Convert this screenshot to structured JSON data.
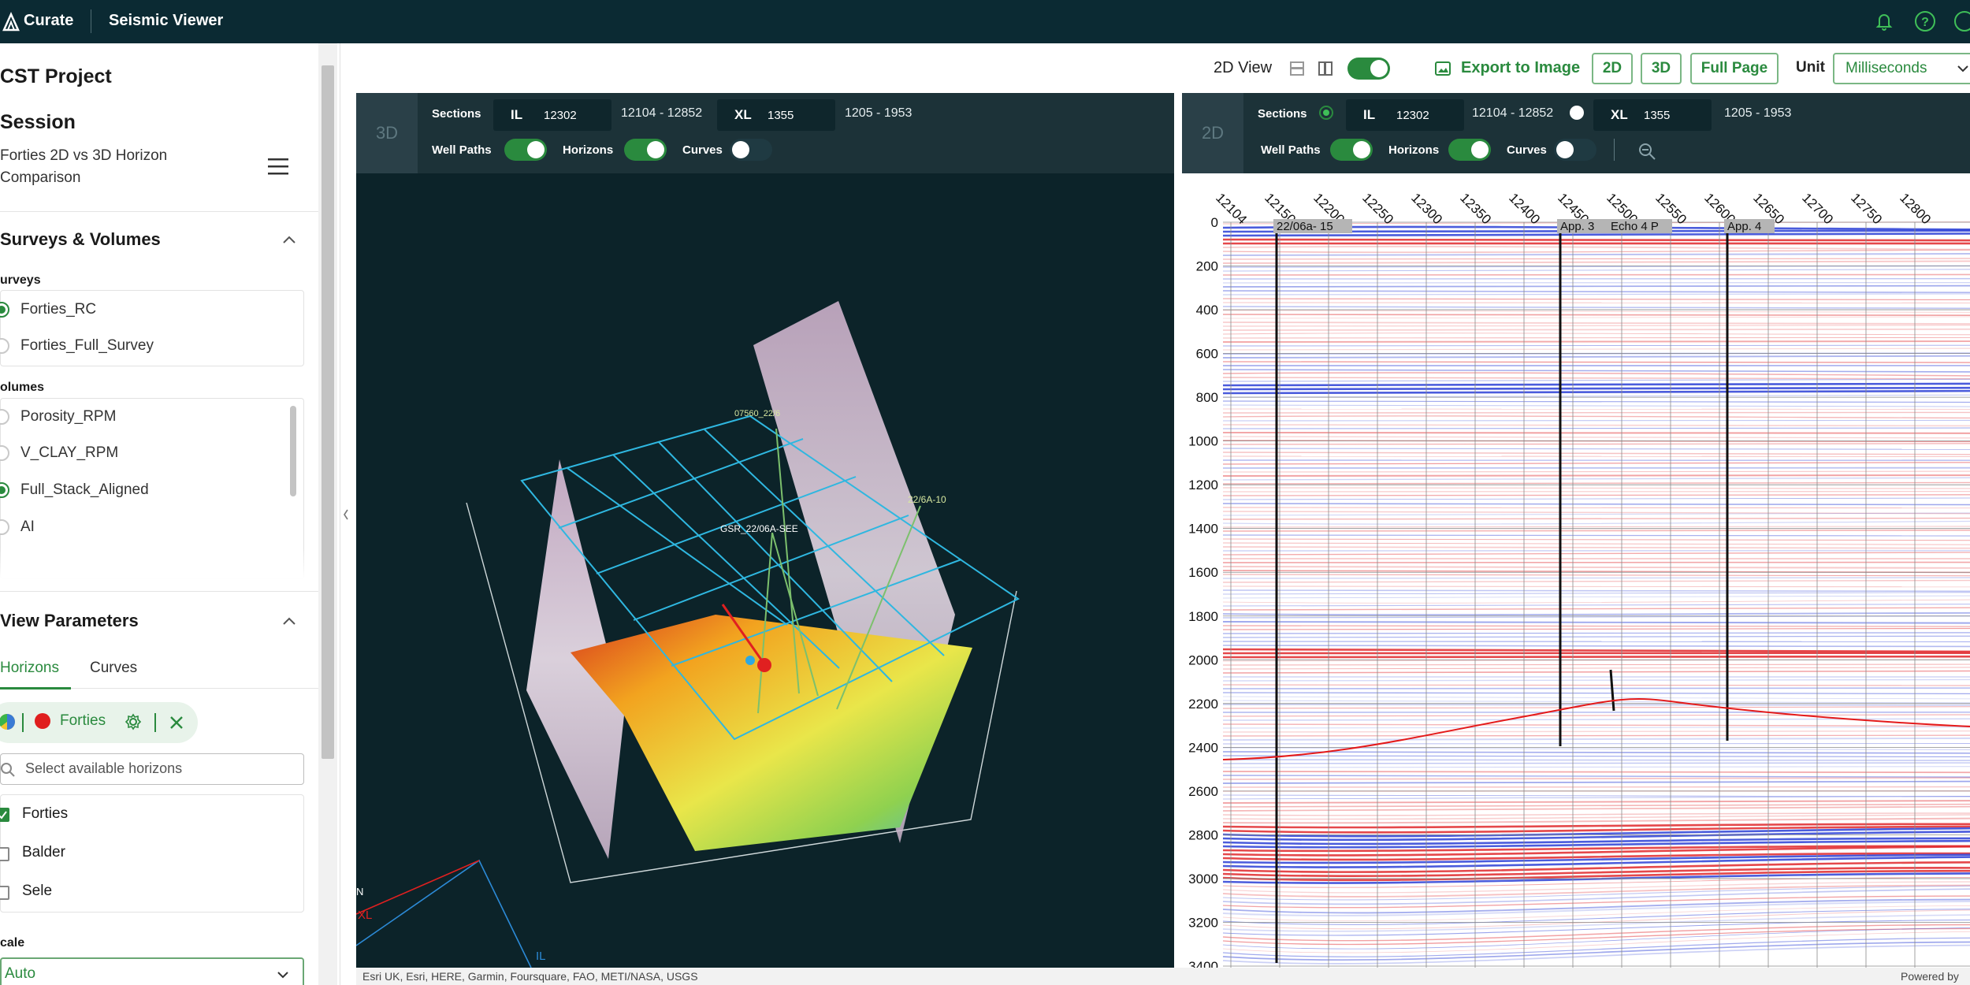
{
  "header": {
    "brand": "Curate",
    "app_title": "Seismic Viewer",
    "icons": [
      "bell-icon",
      "help-icon",
      "user-icon"
    ]
  },
  "sidebar": {
    "project": "CST Project",
    "session_heading": "Session",
    "session_name_line1": "Forties 2D vs 3D Horizon",
    "session_name_line2": "Comparison",
    "surveys_volumes_heading": "Surveys & Volumes",
    "surveys_label": "urveys",
    "surveys": [
      {
        "label": "Forties_RC",
        "selected": true
      },
      {
        "label": "Forties_Full_Survey",
        "selected": false
      }
    ],
    "volumes_label": "olumes",
    "volumes": [
      {
        "label": "Porosity_RPM",
        "selected": false
      },
      {
        "label": "V_CLAY_RPM",
        "selected": false
      },
      {
        "label": "Full_Stack_Aligned",
        "selected": true
      },
      {
        "label": "AI",
        "selected": false
      }
    ],
    "view_parameters_heading": "View Parameters",
    "tabs": [
      {
        "label": "Horizons",
        "active": true
      },
      {
        "label": "Curves",
        "active": false
      }
    ],
    "horizon_chip_label": "Forties",
    "search_placeholder": "Select available horizons",
    "horizons": [
      {
        "label": "Forties",
        "checked": true
      },
      {
        "label": "Balder",
        "checked": false
      },
      {
        "label": "Sele",
        "checked": false
      }
    ],
    "scale_label": "cale",
    "scale_value": "Auto"
  },
  "toolbar": {
    "view_label": "2D View",
    "export_label": "Export to Image",
    "btn_2d": "2D",
    "btn_3d": "3D",
    "btn_full": "Full Page",
    "unit_label": "Unit",
    "unit_value": "Milliseconds"
  },
  "panel3d": {
    "badge": "3D",
    "sections_label": "Sections",
    "il_key": "IL",
    "il_value": "12302",
    "il_range": "12104 - 12852",
    "xl_key": "XL",
    "xl_value": "1355",
    "xl_range": "1205 - 1953",
    "well_paths_label": "Well Paths",
    "horizons_label": "Horizons",
    "curves_label": "Curves",
    "well_labels": [
      "GSR_22/06A-SEE",
      "22/6A-10",
      "07560_22/6"
    ],
    "axis_il": "IL",
    "axis_xl": "XL",
    "axis_n": "N"
  },
  "panel2d": {
    "badge": "2D",
    "sections_label": "Sections",
    "il_key": "IL",
    "il_value": "12302",
    "il_range": "12104 - 12852",
    "xl_key": "XL",
    "xl_value": "1355",
    "xl_range": "1205 - 1953",
    "well_paths_label": "Well Paths",
    "horizons_label": "Horizons",
    "curves_label": "Curves",
    "x_ticks": [
      "12104",
      "12150",
      "12200",
      "12250",
      "12300",
      "12350",
      "12400",
      "12450",
      "12500",
      "12550",
      "12600",
      "12650",
      "12700",
      "12750",
      "12800"
    ],
    "y_ticks": [
      "0",
      "200",
      "400",
      "600",
      "800",
      "1000",
      "1200",
      "1400",
      "1600",
      "1800",
      "2000",
      "2200",
      "2400",
      "2600",
      "2800",
      "3000",
      "3200",
      "3400"
    ],
    "well_tags": [
      "22/06a- 15",
      "App. 3",
      "Echo 4 P",
      "App. 4"
    ]
  },
  "footer": {
    "attribution": "Esri UK, Esri, HERE, Garmin, Foursquare, FAO, METI/NASA, USGS",
    "powered": "Powered by"
  },
  "colors": {
    "brand_green": "#2a8a3e",
    "topbar": "#0b2a33",
    "panel_bg": "#0c2329"
  }
}
